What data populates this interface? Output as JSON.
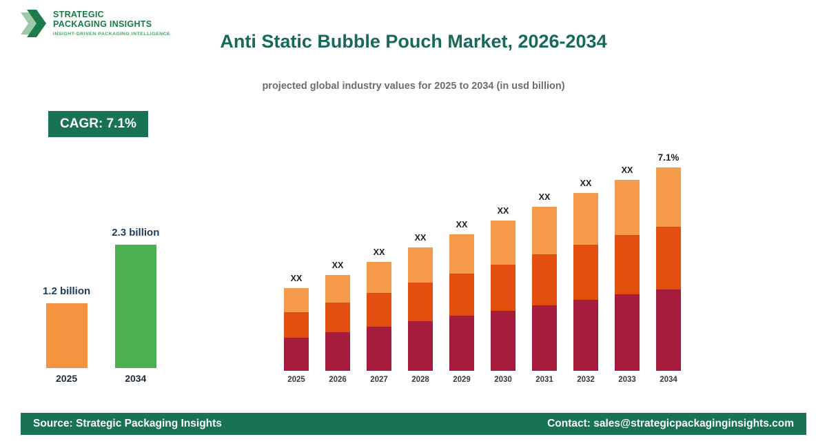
{
  "logo": {
    "line1": "STRATEGIC",
    "line2": "PACKAGING INSIGHTS",
    "tagline": "INSIGHT-DRIVEN PACKAGING INTELLIGENCE"
  },
  "header": {
    "title": "Anti Static Bubble Pouch Market, 2026-2034",
    "subtitle": "projected global industry values for 2025 to 2034 (in usd billion)"
  },
  "cagr_badge": "CAGR: 7.1%",
  "footer": {
    "source": "Source: Strategic Packaging Insights",
    "contact": "Contact: sales@strategicpackaginginsights.com"
  },
  "colors": {
    "brand_green": "#177256",
    "title_teal": "#17695a",
    "summary_orange": "#f5933e",
    "summary_green": "#4daf50",
    "stack_bottom": "#a51c3c",
    "stack_middle": "#e14e0d",
    "stack_top": "#f69a4b"
  },
  "chart_data": [
    {
      "type": "bar",
      "name": "summary-comparison",
      "title": "2025 vs 2034 market size",
      "categories": [
        "2025",
        "2034"
      ],
      "values": [
        1.2,
        2.3
      ],
      "value_labels": [
        "1.2 billion",
        "2.3 billion"
      ],
      "bar_colors": [
        "#f5933e",
        "#4daf50"
      ],
      "ylabel": "usd billion",
      "grid": false,
      "legend": "none"
    },
    {
      "type": "bar",
      "stacked": true,
      "name": "yearly-projection",
      "title": "projected global industry values 2025-2034 (usd billion)",
      "categories": [
        "2025",
        "2026",
        "2027",
        "2028",
        "2029",
        "2030",
        "2031",
        "2032",
        "2033",
        "2034"
      ],
      "series": [
        {
          "name": "segment-bottom",
          "color": "#a51c3c",
          "values": [
            0.48,
            0.53,
            0.58,
            0.63,
            0.68,
            0.72,
            0.77,
            0.82,
            0.87,
            0.92
          ]
        },
        {
          "name": "segment-middle",
          "color": "#e14e0d",
          "values": [
            0.37,
            0.41,
            0.45,
            0.49,
            0.52,
            0.56,
            0.6,
            0.64,
            0.68,
            0.71
          ]
        },
        {
          "name": "segment-top",
          "color": "#f69a4b",
          "values": [
            0.35,
            0.38,
            0.41,
            0.45,
            0.49,
            0.53,
            0.56,
            0.6,
            0.63,
            0.67
          ]
        }
      ],
      "bar_labels": [
        "XX",
        "XX",
        "XX",
        "XX",
        "XX",
        "XX",
        "XX",
        "XX",
        "XX",
        "7.1%"
      ],
      "ylim": [
        0,
        2.5
      ],
      "grid": false,
      "legend": "none",
      "note": "values shown as XX placeholders; CAGR 7.1% labelled on final bar"
    }
  ]
}
